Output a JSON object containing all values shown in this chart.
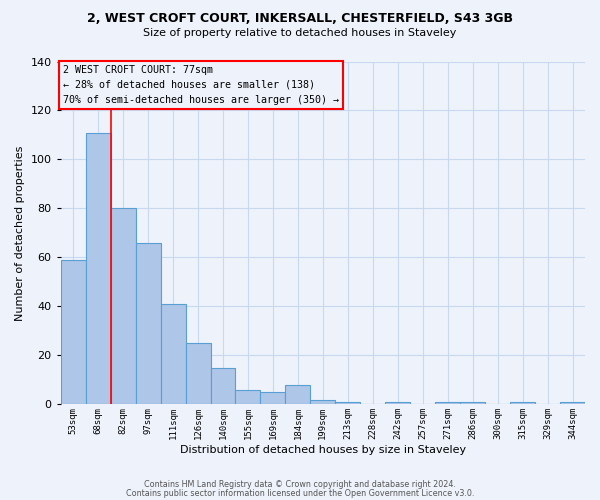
{
  "title1": "2, WEST CROFT COURT, INKERSALL, CHESTERFIELD, S43 3GB",
  "title2": "Size of property relative to detached houses in Staveley",
  "xlabel": "Distribution of detached houses by size in Staveley",
  "ylabel": "Number of detached properties",
  "footnote1": "Contains HM Land Registry data © Crown copyright and database right 2024.",
  "footnote2": "Contains public sector information licensed under the Open Government Licence v3.0.",
  "annotation_line1": "2 WEST CROFT COURT: 77sqm",
  "annotation_line2": "← 28% of detached houses are smaller (138)",
  "annotation_line3": "70% of semi-detached houses are larger (350) →",
  "bar_labels": [
    "53sqm",
    "68sqm",
    "82sqm",
    "97sqm",
    "111sqm",
    "126sqm",
    "140sqm",
    "155sqm",
    "169sqm",
    "184sqm",
    "199sqm",
    "213sqm",
    "228sqm",
    "242sqm",
    "257sqm",
    "271sqm",
    "286sqm",
    "300sqm",
    "315sqm",
    "329sqm",
    "344sqm"
  ],
  "bar_values": [
    59,
    111,
    80,
    66,
    41,
    25,
    15,
    6,
    5,
    8,
    2,
    1,
    0,
    1,
    0,
    1,
    1,
    0,
    1,
    0,
    1
  ],
  "bar_color": "#aec6e8",
  "bar_edge_color": "#5a9fd4",
  "bg_color": "#eef3fb",
  "grid_color": "#c8d8ee",
  "ylim": [
    0,
    140
  ],
  "yticks": [
    0,
    20,
    40,
    60,
    80,
    100,
    120,
    140
  ]
}
